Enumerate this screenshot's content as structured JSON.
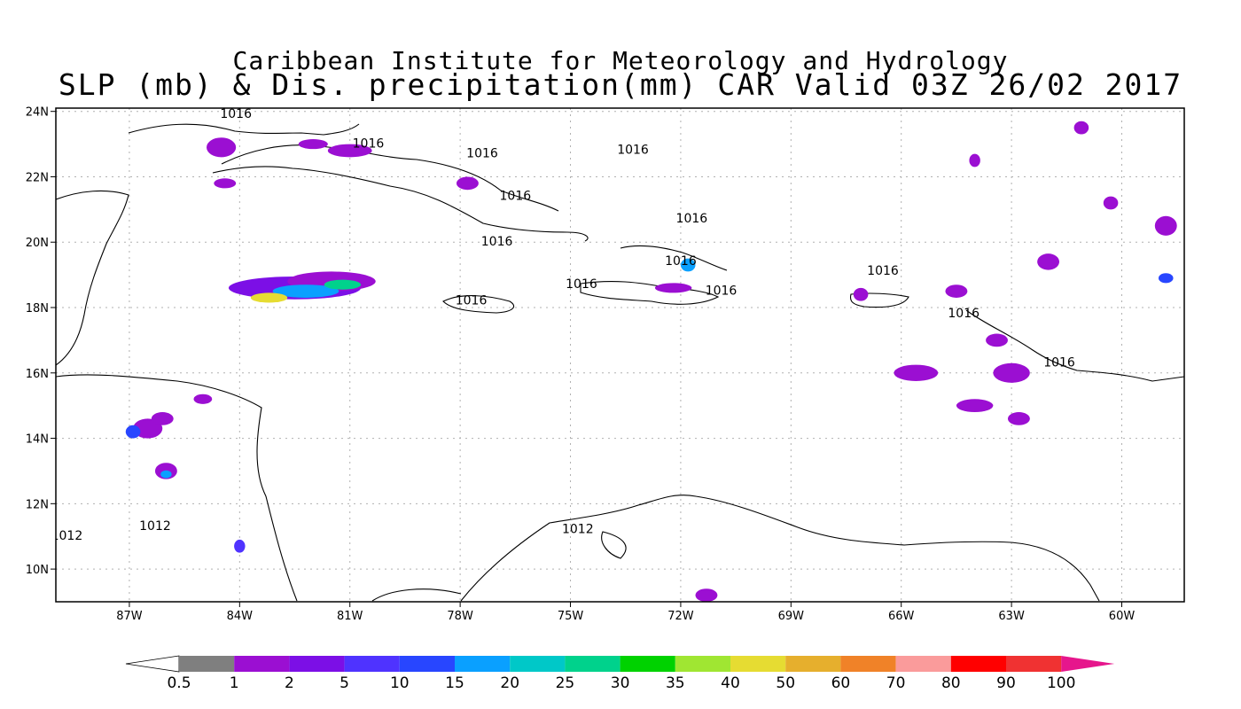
{
  "title_line1": "Caribbean Institute for Meteorology and Hydrology",
  "title_line2": "SLP (mb) & Dis. precipitation(mm) CAR Valid 03Z 26/02 2017",
  "map": {
    "lon_range": [
      -89,
      -58.3
    ],
    "lat_range": [
      9,
      24.1
    ],
    "lon_ticks": [
      -87,
      -84,
      -81,
      -78,
      -75,
      -72,
      -69,
      -66,
      -63,
      -60
    ],
    "lon_tick_labels": [
      "87W",
      "84W",
      "81W",
      "78W",
      "75W",
      "72W",
      "69W",
      "66W",
      "63W",
      "60W"
    ],
    "lat_ticks": [
      10,
      12,
      14,
      16,
      18,
      20,
      22,
      24
    ],
    "lat_tick_labels": [
      "10N",
      "12N",
      "14N",
      "16N",
      "18N",
      "20N",
      "22N",
      "24N"
    ],
    "grid": true,
    "isobars": [
      {
        "value": "1016",
        "lon": -84.1,
        "lat": 23.8
      },
      {
        "value": "1016",
        "lon": -80.5,
        "lat": 22.9
      },
      {
        "value": "1016",
        "lon": -77.4,
        "lat": 22.6
      },
      {
        "value": "1016",
        "lon": -73.3,
        "lat": 22.7
      },
      {
        "value": "1016",
        "lon": -76.5,
        "lat": 21.3
      },
      {
        "value": "1016",
        "lon": -71.7,
        "lat": 20.6
      },
      {
        "value": "1016",
        "lon": -77.0,
        "lat": 19.9
      },
      {
        "value": "1016",
        "lon": -72.0,
        "lat": 19.3
      },
      {
        "value": "1016",
        "lon": -66.5,
        "lat": 19.0
      },
      {
        "value": "1016",
        "lon": -74.7,
        "lat": 18.6
      },
      {
        "value": "1016",
        "lon": -70.9,
        "lat": 18.4
      },
      {
        "value": "1016",
        "lon": -77.7,
        "lat": 18.1
      },
      {
        "value": "1016",
        "lon": -64.3,
        "lat": 17.7
      },
      {
        "value": "1016",
        "lon": -61.7,
        "lat": 16.2
      },
      {
        "value": "1012",
        "lon": -74.8,
        "lat": 11.1
      },
      {
        "value": "1012",
        "lon": -86.3,
        "lat": 11.2
      },
      {
        "value": "1012",
        "lon": -88.7,
        "lat": 10.9
      }
    ],
    "precip_colors": [
      "#7f7f7f",
      "#9b0fd2",
      "#7c0fe6",
      "#4f33ff",
      "#2846ff",
      "#0aa0ff",
      "#00c8c8",
      "#00d28c",
      "#00d200",
      "#a0e632",
      "#e6dc32",
      "#e6af2d",
      "#f08228",
      "#fa9b9b",
      "#ff0000",
      "#f03232",
      "#e6168c"
    ],
    "precip_areas": [
      {
        "lon": -82.5,
        "lat": 18.6,
        "rx": 1.8,
        "ry": 0.35,
        "level": 2
      },
      {
        "lon": -81.5,
        "lat": 18.8,
        "rx": 1.2,
        "ry": 0.3,
        "level": 1
      },
      {
        "lon": -82.2,
        "lat": 18.5,
        "rx": 0.9,
        "ry": 0.2,
        "level": 5
      },
      {
        "lon": -81.2,
        "lat": 18.7,
        "rx": 0.5,
        "ry": 0.15,
        "level": 7
      },
      {
        "lon": -83.2,
        "lat": 18.3,
        "rx": 0.5,
        "ry": 0.15,
        "level": 10
      },
      {
        "lon": -84.5,
        "lat": 22.9,
        "rx": 0.4,
        "ry": 0.3,
        "level": 1
      },
      {
        "lon": -84.4,
        "lat": 21.8,
        "rx": 0.3,
        "ry": 0.15,
        "level": 1
      },
      {
        "lon": -81.0,
        "lat": 22.8,
        "rx": 0.6,
        "ry": 0.2,
        "level": 1
      },
      {
        "lon": -82.0,
        "lat": 23.0,
        "rx": 0.4,
        "ry": 0.15,
        "level": 1
      },
      {
        "lon": -77.8,
        "lat": 21.8,
        "rx": 0.3,
        "ry": 0.2,
        "level": 1
      },
      {
        "lon": -71.8,
        "lat": 19.3,
        "rx": 0.2,
        "ry": 0.2,
        "level": 5
      },
      {
        "lon": -72.2,
        "lat": 18.6,
        "rx": 0.5,
        "ry": 0.15,
        "level": 1
      },
      {
        "lon": -67.1,
        "lat": 18.4,
        "rx": 0.2,
        "ry": 0.2,
        "level": 1
      },
      {
        "lon": -63.0,
        "lat": 16.0,
        "rx": 0.5,
        "ry": 0.3,
        "level": 1
      },
      {
        "lon": -63.4,
        "lat": 17.0,
        "rx": 0.3,
        "ry": 0.2,
        "level": 1
      },
      {
        "lon": -64.0,
        "lat": 15.0,
        "rx": 0.5,
        "ry": 0.2,
        "level": 1
      },
      {
        "lon": -62.8,
        "lat": 14.6,
        "rx": 0.3,
        "ry": 0.2,
        "level": 1
      },
      {
        "lon": -65.6,
        "lat": 16.0,
        "rx": 0.6,
        "ry": 0.25,
        "level": 1
      },
      {
        "lon": -64.5,
        "lat": 18.5,
        "rx": 0.3,
        "ry": 0.2,
        "level": 1
      },
      {
        "lon": -58.8,
        "lat": 20.5,
        "rx": 0.3,
        "ry": 0.3,
        "level": 1
      },
      {
        "lon": -58.8,
        "lat": 18.9,
        "rx": 0.2,
        "ry": 0.15,
        "level": 4
      },
      {
        "lon": -86.5,
        "lat": 14.3,
        "rx": 0.4,
        "ry": 0.3,
        "level": 1
      },
      {
        "lon": -86.9,
        "lat": 14.2,
        "rx": 0.2,
        "ry": 0.2,
        "level": 4
      },
      {
        "lon": -86.1,
        "lat": 14.6,
        "rx": 0.3,
        "ry": 0.2,
        "level": 1
      },
      {
        "lon": -86.0,
        "lat": 13.0,
        "rx": 0.3,
        "ry": 0.25,
        "level": 1
      },
      {
        "lon": -86.0,
        "lat": 12.9,
        "rx": 0.15,
        "ry": 0.12,
        "level": 5
      },
      {
        "lon": -85.0,
        "lat": 15.2,
        "rx": 0.25,
        "ry": 0.15,
        "level": 1
      },
      {
        "lon": -84.0,
        "lat": 10.7,
        "rx": 0.15,
        "ry": 0.2,
        "level": 3
      },
      {
        "lon": -61.1,
        "lat": 23.5,
        "rx": 0.2,
        "ry": 0.2,
        "level": 1
      },
      {
        "lon": -64.0,
        "lat": 22.5,
        "rx": 0.15,
        "ry": 0.2,
        "level": 1
      },
      {
        "lon": -60.3,
        "lat": 21.2,
        "rx": 0.2,
        "ry": 0.2,
        "level": 1
      },
      {
        "lon": -62.0,
        "lat": 19.4,
        "rx": 0.3,
        "ry": 0.25,
        "level": 1
      },
      {
        "lon": -71.3,
        "lat": 9.2,
        "rx": 0.3,
        "ry": 0.2,
        "level": 1
      }
    ]
  },
  "colorbar": {
    "labels": [
      "0.5",
      "1",
      "2",
      "5",
      "10",
      "15",
      "20",
      "25",
      "30",
      "35",
      "40",
      "50",
      "60",
      "70",
      "80",
      "90",
      "100"
    ],
    "colors": [
      "#7f7f7f",
      "#9b0fd2",
      "#7c0fe6",
      "#4f33ff",
      "#2846ff",
      "#0aa0ff",
      "#00c8c8",
      "#00d28c",
      "#00d200",
      "#a0e632",
      "#e6dc32",
      "#e6af2d",
      "#f08228",
      "#fa9b9b",
      "#ff0000",
      "#f03232"
    ],
    "over_color": "#e6168c"
  }
}
